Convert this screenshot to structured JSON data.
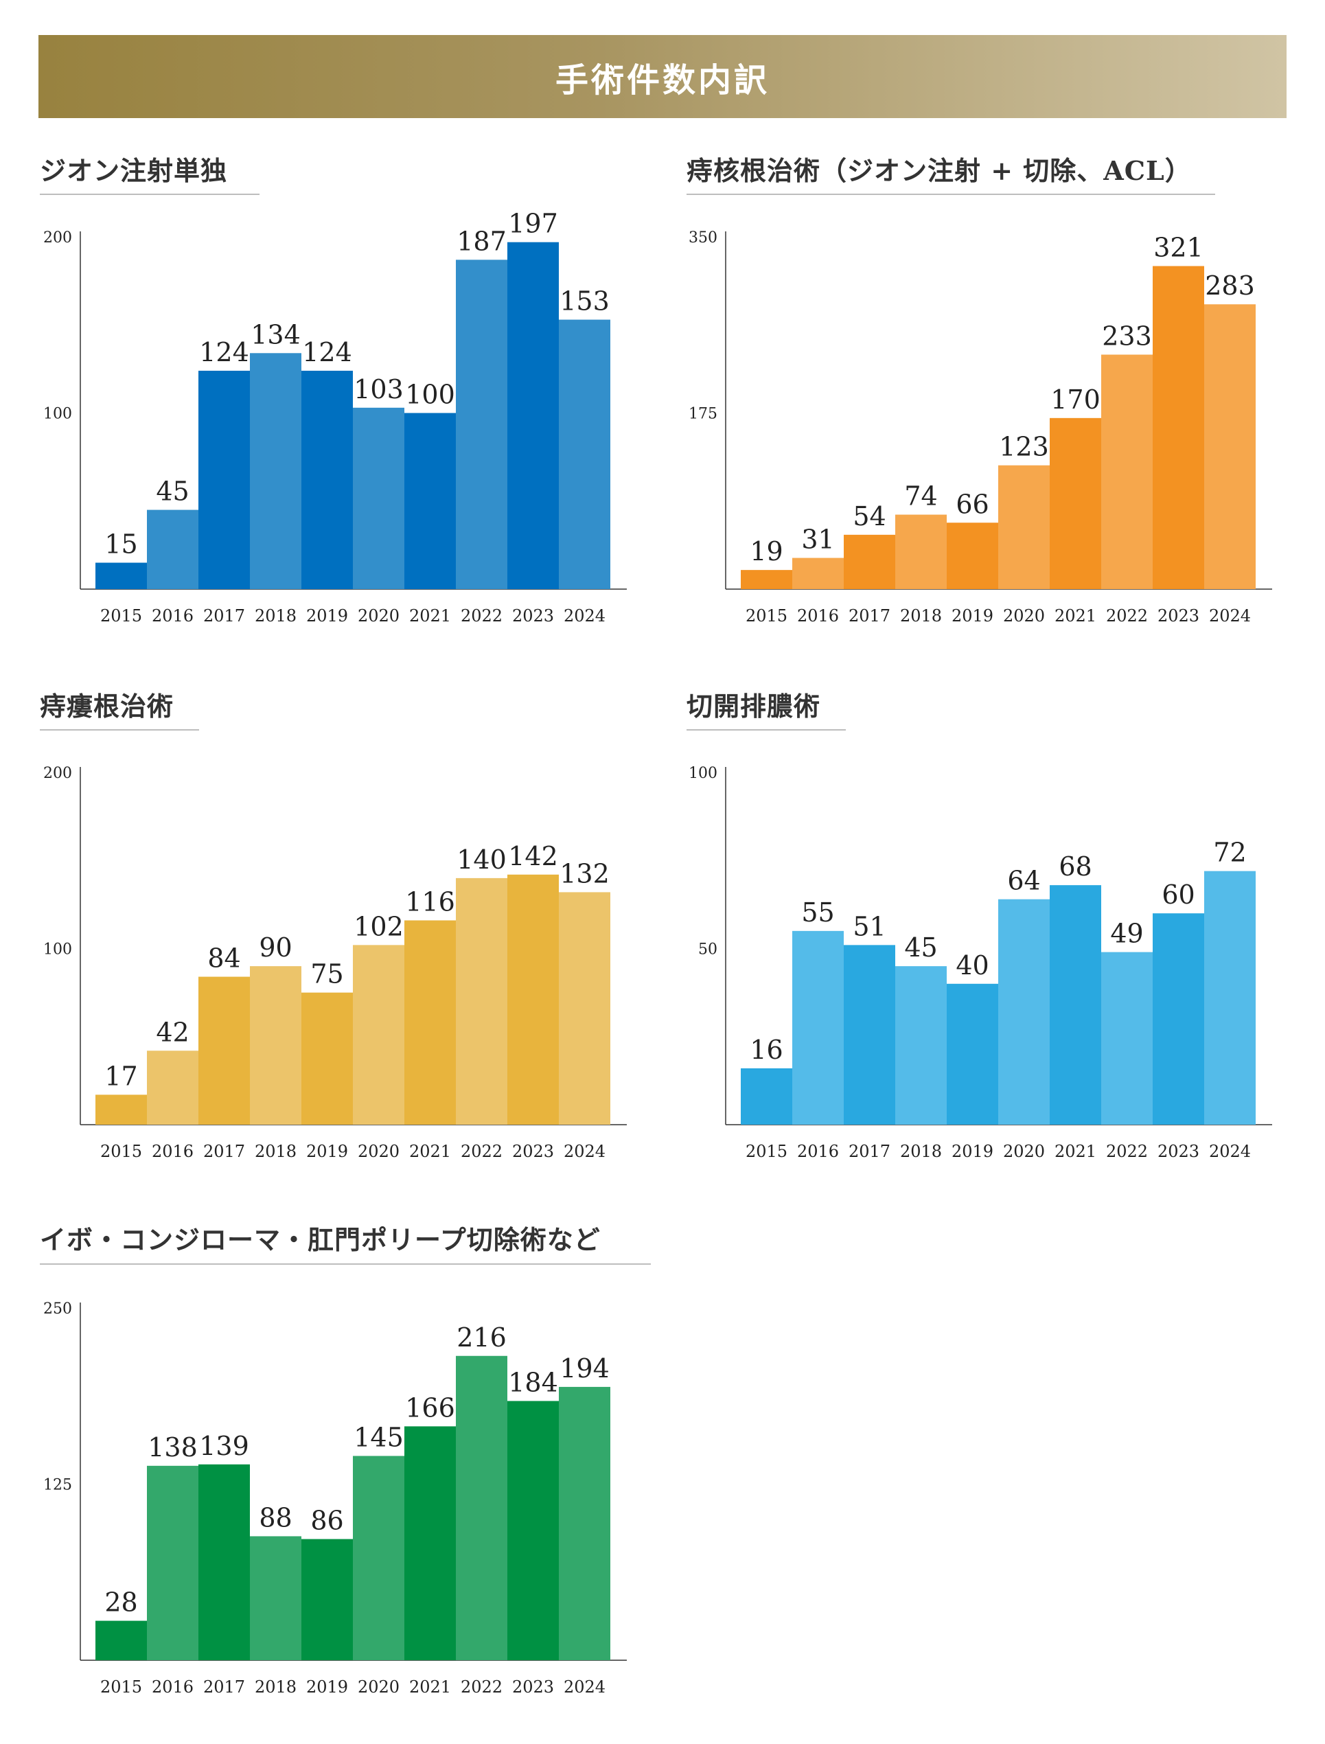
{
  "banner": {
    "title": "手術件数内訳"
  },
  "chart_data": [
    {
      "type": "bar",
      "title": "ジオン注射単独",
      "categories": [
        "2015",
        "2016",
        "2017",
        "2018",
        "2019",
        "2020",
        "2021",
        "2022",
        "2023",
        "2024"
      ],
      "values": [
        15,
        45,
        124,
        134,
        124,
        103,
        100,
        187,
        197,
        153
      ],
      "ylim": [
        0,
        200
      ],
      "yticks": [
        "100",
        "200"
      ],
      "colors": [
        "#0070c0",
        "#338fcb"
      ],
      "xlabel": "",
      "ylabel": "",
      "grid": false
    },
    {
      "type": "bar",
      "title": "痔核根治術（ジオン注射 + 切除、ACL）",
      "categories": [
        "2015",
        "2016",
        "2017",
        "2018",
        "2019",
        "2020",
        "2021",
        "2022",
        "2023",
        "2024"
      ],
      "values": [
        19,
        31,
        54,
        74,
        66,
        123,
        170,
        233,
        321,
        283
      ],
      "ylim": [
        0,
        350
      ],
      "yticks": [
        "175",
        "350"
      ],
      "colors": [
        "#f39222",
        "#f6a74c"
      ],
      "xlabel": "",
      "ylabel": "",
      "grid": false
    },
    {
      "type": "bar",
      "title": "痔瘻根治術",
      "categories": [
        "2015",
        "2016",
        "2017",
        "2018",
        "2019",
        "2020",
        "2021",
        "2022",
        "2023",
        "2024"
      ],
      "values": [
        17,
        42,
        84,
        90,
        75,
        102,
        116,
        140,
        142,
        132
      ],
      "ylim": [
        0,
        200
      ],
      "yticks": [
        "100",
        "200"
      ],
      "colors": [
        "#e8b43d",
        "#ecc46a"
      ],
      "xlabel": "",
      "ylabel": "",
      "grid": false
    },
    {
      "type": "bar",
      "title": "切開排膿術",
      "categories": [
        "2015",
        "2016",
        "2017",
        "2018",
        "2019",
        "2020",
        "2021",
        "2022",
        "2023",
        "2024"
      ],
      "values": [
        16,
        55,
        51,
        45,
        40,
        64,
        68,
        49,
        60,
        72
      ],
      "ylim": [
        0,
        100
      ],
      "yticks": [
        "50",
        "100"
      ],
      "colors": [
        "#29a8e0",
        "#54bbe9"
      ],
      "xlabel": "",
      "ylabel": "",
      "grid": false
    },
    {
      "type": "bar",
      "title": "イボ・コンジローマ・肛門ポリープ切除術など",
      "categories": [
        "2015",
        "2016",
        "2017",
        "2018",
        "2019",
        "2020",
        "2021",
        "2022",
        "2023",
        "2024"
      ],
      "values": [
        28,
        138,
        139,
        88,
        86,
        145,
        166,
        216,
        184,
        194
      ],
      "ylim": [
        0,
        250
      ],
      "yticks": [
        "125",
        "250"
      ],
      "colors": [
        "#009143",
        "#33a86b"
      ],
      "xlabel": "",
      "ylabel": "",
      "grid": false
    }
  ]
}
